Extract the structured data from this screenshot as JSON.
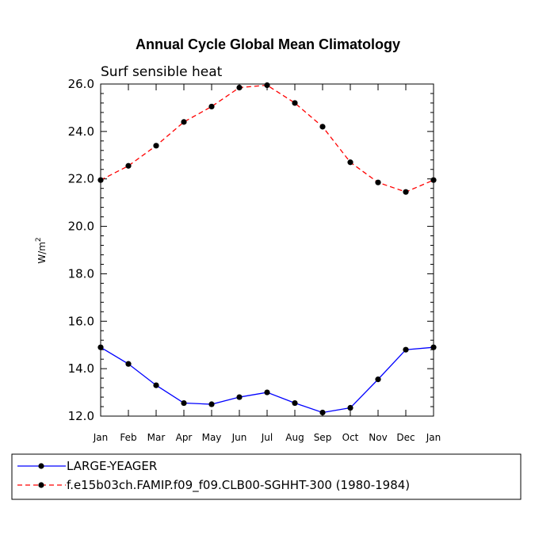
{
  "chart_data": {
    "type": "line",
    "title": "Annual Cycle Global Mean Climatology",
    "subtitle": "Surf sensible heat",
    "ylabel_main": "W/m",
    "ylabel_sup": "2",
    "xlabel": "",
    "categories": [
      "Jan",
      "Feb",
      "Mar",
      "Apr",
      "May",
      "Jun",
      "Jul",
      "Aug",
      "Sep",
      "Oct",
      "Nov",
      "Dec",
      "Jan"
    ],
    "ylim": [
      12.0,
      26.0
    ],
    "yticks": [
      12.0,
      14.0,
      16.0,
      18.0,
      20.0,
      22.0,
      24.0,
      26.0
    ],
    "ytick_labels": [
      "12.0",
      "14.0",
      "16.0",
      "18.0",
      "20.0",
      "22.0",
      "24.0",
      "26.0"
    ],
    "grid": false,
    "legend_position": "bottom",
    "series": [
      {
        "name": "LARGE-YEAGER",
        "color": "#0000ff",
        "dash": "solid",
        "values": [
          14.9,
          14.2,
          13.3,
          12.55,
          12.5,
          12.8,
          13.0,
          12.55,
          12.15,
          12.35,
          13.55,
          14.8,
          14.9
        ]
      },
      {
        "name": "f.e15b03ch.FAMIP.f09_f09.CLB00-SGHHT-300 (1980-1984)",
        "color": "#ff0000",
        "dash": "dashed",
        "values": [
          21.95,
          22.55,
          23.4,
          24.4,
          25.05,
          25.85,
          25.95,
          25.2,
          24.2,
          22.7,
          21.85,
          21.45,
          21.95
        ]
      }
    ]
  }
}
